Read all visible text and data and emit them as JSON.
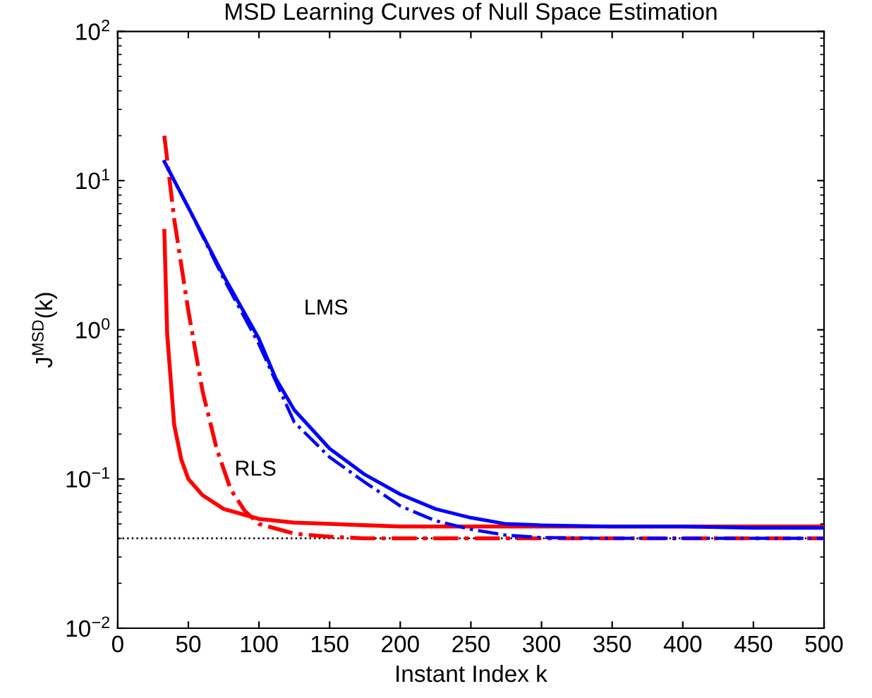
{
  "chart_data": {
    "type": "line",
    "title": "MSD Learning Curves of Null Space Estimation",
    "xlabel": "Instant Index k",
    "ylabel": "J$^{MSD}$(k)",
    "log": "y",
    "grid": false,
    "legend": false,
    "marker": "none",
    "xlim": [
      0,
      500
    ],
    "xticks": [
      0,
      50,
      100,
      150,
      200,
      250,
      300,
      350,
      400,
      450,
      500
    ],
    "ylim": [
      0.01,
      100
    ],
    "yticks": [
      {
        "value": 0.01,
        "label": "10$^{−2}$"
      },
      {
        "value": 0.1,
        "label": "10$^{−1}$"
      },
      {
        "value": 1,
        "label": "10$^{0}$"
      },
      {
        "value": 10,
        "label": "10$^{1}$"
      },
      {
        "value": 100,
        "label": "10$^{2}$"
      }
    ],
    "series": [
      {
        "color": "#0000ff",
        "line_style": "solid",
        "x": [
          33,
          50,
          75,
          100,
          112,
          125,
          150,
          175,
          200,
          225,
          250,
          275,
          300,
          350,
          400,
          450,
          500
        ],
        "values": [
          13.4,
          6.6,
          2.3,
          0.87,
          0.47,
          0.29,
          0.16,
          0.107,
          0.079,
          0.063,
          0.055,
          0.05,
          0.049,
          0.048,
          0.048,
          0.047,
          0.047
        ]
      },
      {
        "color": "#0000ff",
        "line_style": "dashdot",
        "x": [
          33,
          50,
          75,
          100,
          125,
          150,
          175,
          200,
          225,
          250,
          275,
          300,
          350,
          400,
          450,
          500
        ],
        "values": [
          13.4,
          6.6,
          2.2,
          0.8,
          0.24,
          0.14,
          0.095,
          0.066,
          0.0525,
          0.046,
          0.042,
          0.0405,
          0.04,
          0.04,
          0.04,
          0.04
        ]
      },
      {
        "color": "#ff0000",
        "line_style": "solid",
        "x": [
          33,
          35,
          40,
          45,
          50,
          60,
          75,
          100,
          125,
          150,
          200,
          300,
          400,
          500
        ],
        "values": [
          4.6,
          0.94,
          0.23,
          0.135,
          0.1,
          0.078,
          0.063,
          0.054,
          0.051,
          0.05,
          0.048,
          0.048,
          0.048,
          0.048
        ]
      },
      {
        "color": "#ff0000",
        "line_style": "dashdot",
        "x": [
          33,
          40,
          50,
          60,
          70,
          80,
          90,
          100,
          125,
          150,
          175,
          300,
          500
        ],
        "values": [
          20,
          5.5,
          1.34,
          0.39,
          0.16,
          0.085,
          0.061,
          0.05,
          0.043,
          0.041,
          0.04,
          0.04,
          0.04
        ]
      }
    ],
    "ref_lines": [
      {
        "axis": "y",
        "value": 0.04,
        "color": "#000000",
        "line_style": "dotted"
      }
    ],
    "annotations": [
      "LMS",
      "RLS"
    ]
  }
}
